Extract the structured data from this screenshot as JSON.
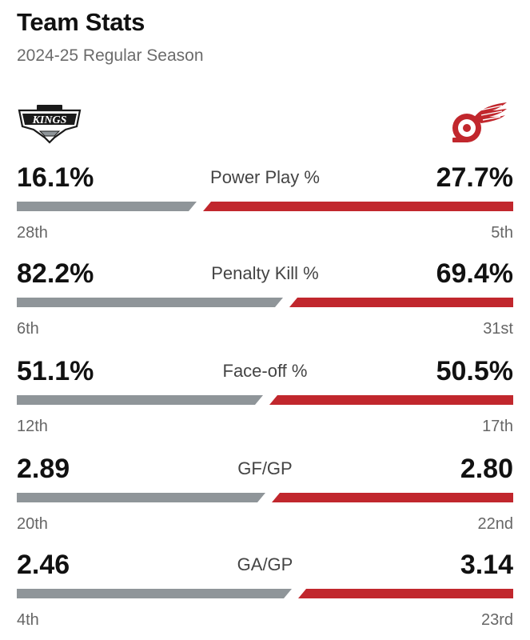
{
  "header": {
    "title": "Team Stats",
    "subtitle": "2024-25 Regular Season"
  },
  "teams": {
    "home": {
      "logo_icon": "la-kings-logo-icon",
      "logo_text": "KINGS",
      "color": "#8f9599"
    },
    "away": {
      "logo_icon": "detroit-red-wings-logo-icon",
      "color": "#c1272d"
    }
  },
  "stats": [
    {
      "label": "Power Play %",
      "home_value": "16.1%",
      "away_value": "27.7%",
      "home_rank": "28th",
      "away_rank": "5th",
      "home_share": 0.368
    },
    {
      "label": "Penalty Kill %",
      "home_value": "82.2%",
      "away_value": "69.4%",
      "home_rank": "6th",
      "away_rank": "31st",
      "home_share": 0.542
    },
    {
      "label": "Face-off %",
      "home_value": "51.1%",
      "away_value": "50.5%",
      "home_rank": "12th",
      "away_rank": "17th",
      "home_share": 0.503
    },
    {
      "label": "GF/GP",
      "home_value": "2.89",
      "away_value": "2.80",
      "home_rank": "20th",
      "away_rank": "22nd",
      "home_share": 0.508
    },
    {
      "label": "GA/GP",
      "home_value": "2.46",
      "away_value": "3.14",
      "home_rank": "4th",
      "away_rank": "23rd",
      "home_share": 0.561
    }
  ]
}
